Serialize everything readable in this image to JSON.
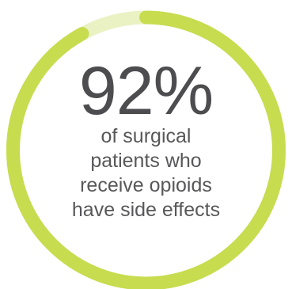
{
  "colors": {
    "progress": "#c7dc4e",
    "track": "#eaf2c4",
    "value_text": "#4d4d4f",
    "caption_text": "#58585a"
  },
  "chart_data": {
    "type": "pie",
    "variant": "progress-ring",
    "value": 92,
    "max": 100,
    "value_label": "92%",
    "caption_lines": [
      "of surgical",
      "patients who",
      "receive opioids",
      "have side effects"
    ]
  }
}
